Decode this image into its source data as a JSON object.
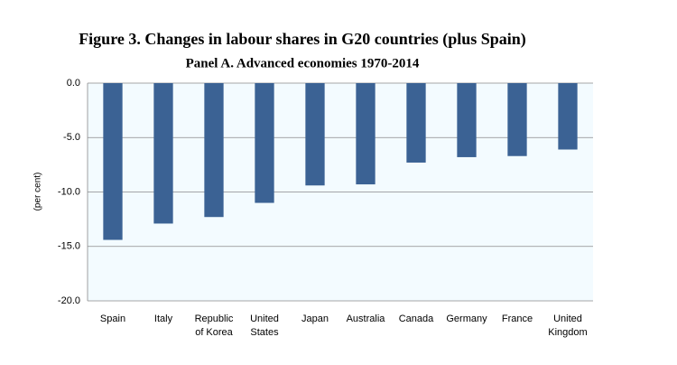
{
  "chart_data": {
    "type": "bar",
    "title": "Figure 3. Changes in labour shares in G20 countries (plus Spain)",
    "subtitle": "Panel A. Advanced economies 1970-2014",
    "y_label": "(per cent)",
    "categories": [
      "Spain",
      "Italy",
      "Republic of Korea",
      "United States",
      "Japan",
      "Australia",
      "Canada",
      "Germany",
      "France",
      "United Kingdom"
    ],
    "values": [
      -14.4,
      -12.9,
      -12.3,
      -11.0,
      -9.4,
      -9.3,
      -7.3,
      -6.8,
      -6.7,
      -6.1
    ],
    "color": "#3b6294",
    "plot_background": "#f3fbff",
    "ylim": [
      -20,
      0
    ],
    "yticks": [
      {
        "value": 0,
        "label": "0.0"
      },
      {
        "value": -5,
        "label": "-5.0"
      },
      {
        "value": -10,
        "label": "-10.0"
      },
      {
        "value": -15,
        "label": "-15.0"
      },
      {
        "value": -20,
        "label": "-20.0"
      }
    ],
    "grid": true
  }
}
